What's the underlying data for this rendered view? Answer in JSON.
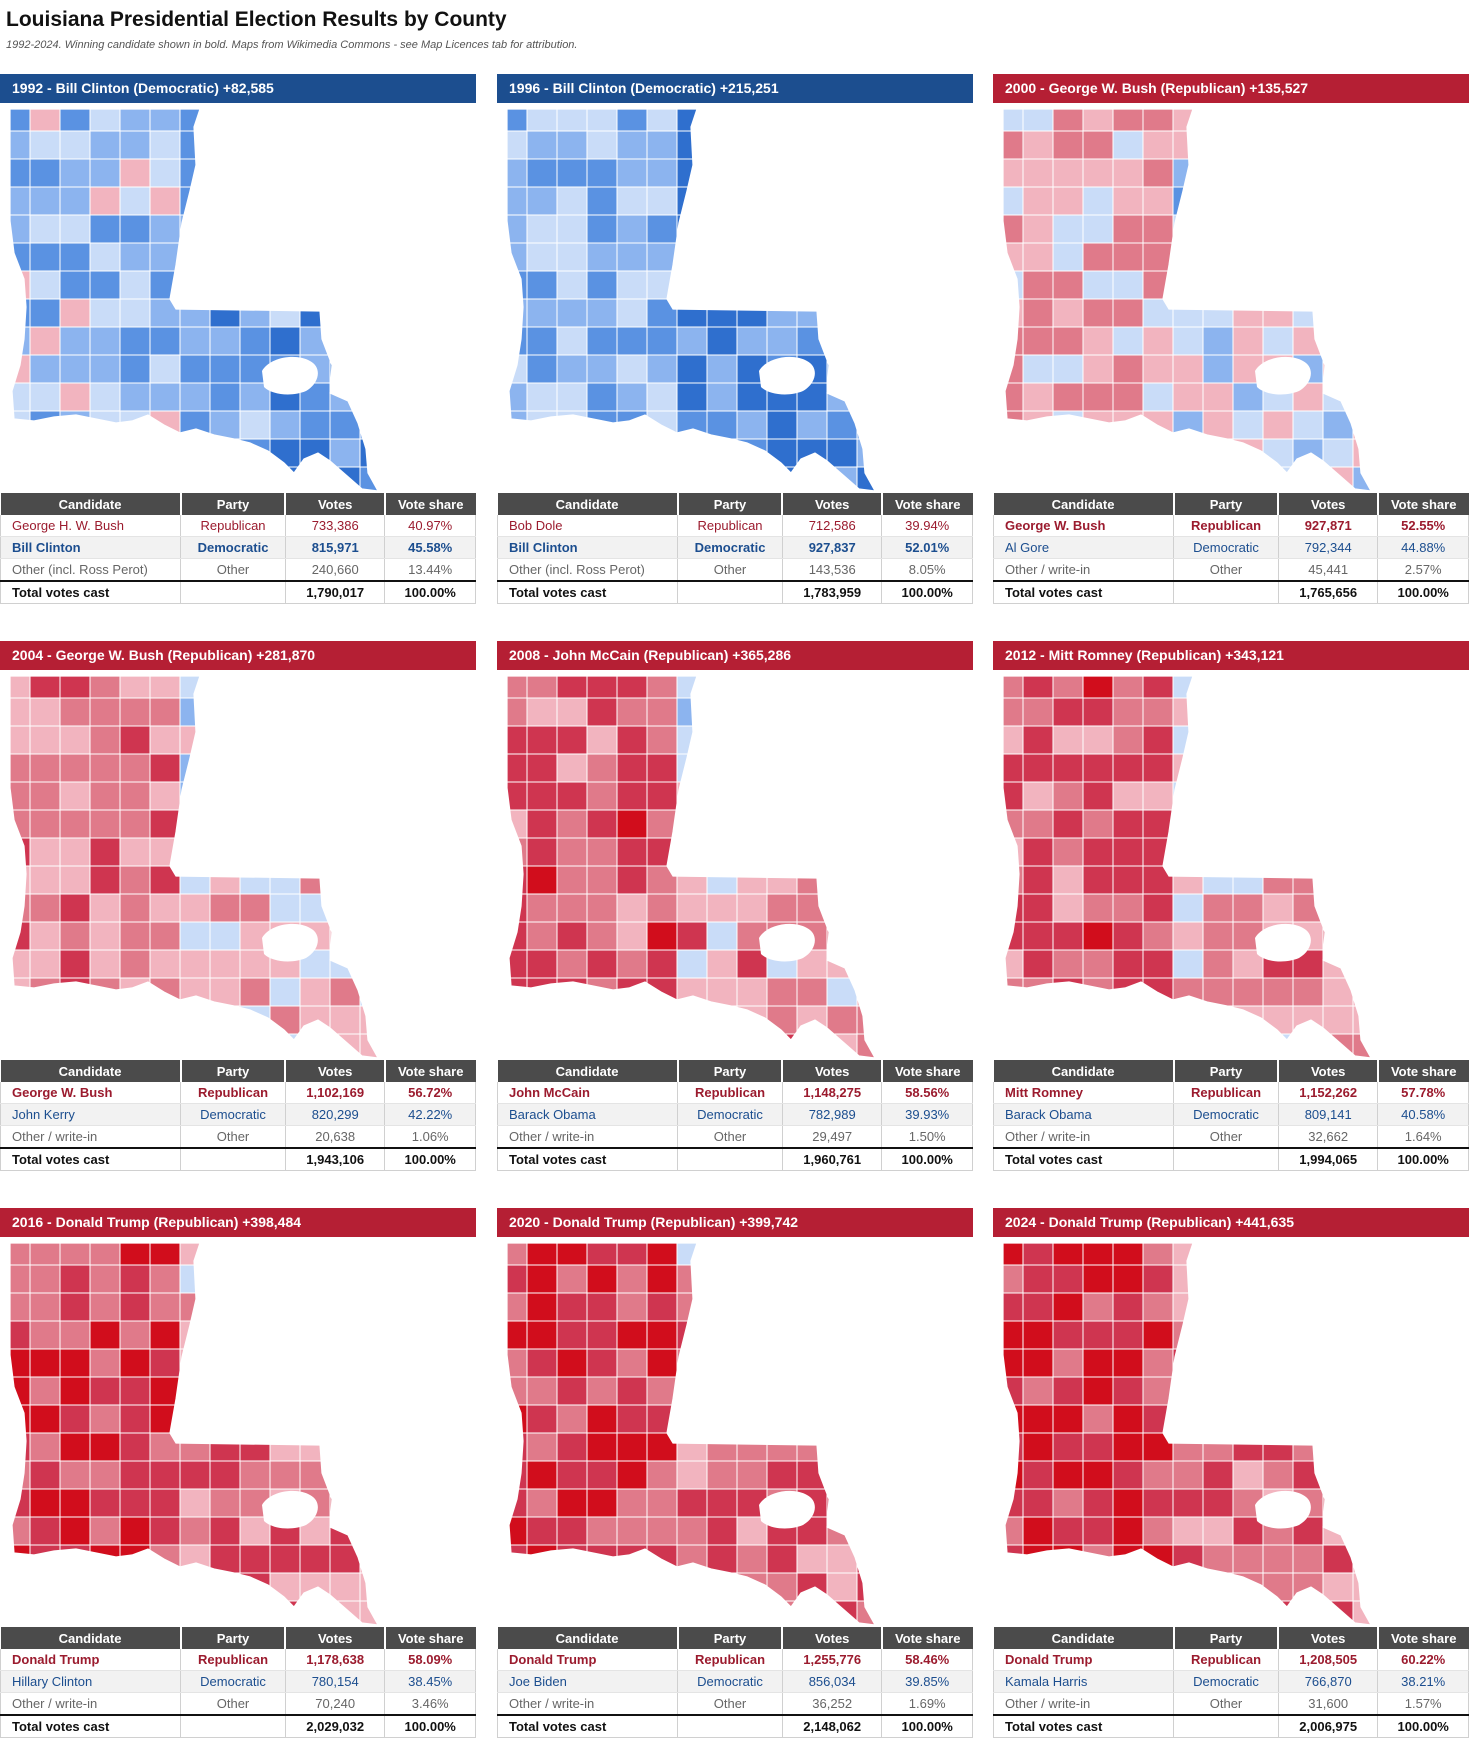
{
  "title": "Louisiana Presidential Election Results by County",
  "subtitle": "1992-2024. Winning candidate shown in bold. Maps from Wikimedia Commons - see Map Licences tab for attribution.",
  "table_headers": [
    "Candidate",
    "Party",
    "Votes",
    "Vote share"
  ],
  "colors": {
    "dem_header": "#1c4e8f",
    "rep_header": "#b51f34",
    "dem_shades": [
      "#c9dcf8",
      "#8cb4ef",
      "#5a92e2",
      "#2f6fce"
    ],
    "rep_shades": [
      "#f2b4bf",
      "#e07a8a",
      "#cf3550",
      "#d10d1c",
      "#8e0a14"
    ]
  },
  "elections": [
    {
      "year": "1992",
      "party": "dem",
      "header": "1992   -   Bill Clinton (Democratic) +82,585",
      "map_shade_bias": -0.65,
      "rows": [
        {
          "candidate": "George H. W. Bush",
          "party": "Republican",
          "votes": "733,386",
          "share": "40.97%",
          "type": "rep",
          "winner": false
        },
        {
          "candidate": "Bill Clinton",
          "party": "Democratic",
          "votes": "815,971",
          "share": "45.58%",
          "type": "dem",
          "winner": true
        },
        {
          "candidate": "Other (incl. Ross Perot)",
          "party": "Other",
          "votes": "240,660",
          "share": "13.44%",
          "type": "oth",
          "winner": false
        }
      ],
      "total": {
        "label": "Total votes cast",
        "votes": "1,790,017",
        "share": "100.00%"
      }
    },
    {
      "year": "1996",
      "party": "dem",
      "header": "1996   -   Bill Clinton (Democratic) +215,251",
      "map_shade_bias": -1.0,
      "rows": [
        {
          "candidate": "Bob Dole",
          "party": "Republican",
          "votes": "712,586",
          "share": "39.94%",
          "type": "rep",
          "winner": false
        },
        {
          "candidate": "Bill Clinton",
          "party": "Democratic",
          "votes": "927,837",
          "share": "52.01%",
          "type": "dem",
          "winner": true
        },
        {
          "candidate": "Other (incl. Ross Perot)",
          "party": "Other",
          "votes": "143,536",
          "share": "8.05%",
          "type": "oth",
          "winner": false
        }
      ],
      "total": {
        "label": "Total votes cast",
        "votes": "1,783,959",
        "share": "100.00%"
      }
    },
    {
      "year": "2000",
      "party": "rep",
      "header": "2000   -   George W. Bush (Republican) +135,527",
      "map_shade_bias": 0.5,
      "rows": [
        {
          "candidate": "George W. Bush",
          "party": "Republican",
          "votes": "927,871",
          "share": "52.55%",
          "type": "rep",
          "winner": true
        },
        {
          "candidate": "Al Gore",
          "party": "Democratic",
          "votes": "792,344",
          "share": "44.88%",
          "type": "dem",
          "winner": false
        },
        {
          "candidate": "Other / write-in",
          "party": "Other",
          "votes": "45,441",
          "share": "2.57%",
          "type": "oth",
          "winner": false
        }
      ],
      "total": {
        "label": "Total votes cast",
        "votes": "1,765,656",
        "share": "100.00%"
      }
    },
    {
      "year": "2004",
      "party": "rep",
      "header": "2004   -   George W. Bush (Republican) +281,870",
      "map_shade_bias": 1.0,
      "rows": [
        {
          "candidate": "George W. Bush",
          "party": "Republican",
          "votes": "1,102,169",
          "share": "56.72%",
          "type": "rep",
          "winner": true
        },
        {
          "candidate": "John Kerry",
          "party": "Democratic",
          "votes": "820,299",
          "share": "42.22%",
          "type": "dem",
          "winner": false
        },
        {
          "candidate": "Other / write-in",
          "party": "Other",
          "votes": "20,638",
          "share": "1.06%",
          "type": "oth",
          "winner": false
        }
      ],
      "total": {
        "label": "Total votes cast",
        "votes": "1,943,106",
        "share": "100.00%"
      }
    },
    {
      "year": "2008",
      "party": "rep",
      "header": "2008   -   John McCain (Republican) +365,286",
      "map_shade_bias": 1.3,
      "rows": [
        {
          "candidate": "John McCain",
          "party": "Republican",
          "votes": "1,148,275",
          "share": "58.56%",
          "type": "rep",
          "winner": true
        },
        {
          "candidate": "Barack Obama",
          "party": "Democratic",
          "votes": "782,989",
          "share": "39.93%",
          "type": "dem",
          "winner": false
        },
        {
          "candidate": "Other / write-in",
          "party": "Other",
          "votes": "29,497",
          "share": "1.50%",
          "type": "oth",
          "winner": false
        }
      ],
      "total": {
        "label": "Total votes cast",
        "votes": "1,960,761",
        "share": "100.00%"
      }
    },
    {
      "year": "2012",
      "party": "rep",
      "header": "2012   -   Mitt Romney (Republican) +343,121",
      "map_shade_bias": 1.3,
      "rows": [
        {
          "candidate": "Mitt Romney",
          "party": "Republican",
          "votes": "1,152,262",
          "share": "57.78%",
          "type": "rep",
          "winner": true
        },
        {
          "candidate": "Barack Obama",
          "party": "Democratic",
          "votes": "809,141",
          "share": "40.58%",
          "type": "dem",
          "winner": false
        },
        {
          "candidate": "Other / write-in",
          "party": "Other",
          "votes": "32,662",
          "share": "1.64%",
          "type": "oth",
          "winner": false
        }
      ],
      "total": {
        "label": "Total votes cast",
        "votes": "1,994,065",
        "share": "100.00%"
      }
    },
    {
      "year": "2016",
      "party": "rep",
      "header": "2016   -   Donald Trump (Republican) +398,484",
      "map_shade_bias": 1.7,
      "rows": [
        {
          "candidate": "Donald Trump",
          "party": "Republican",
          "votes": "1,178,638",
          "share": "58.09%",
          "type": "rep",
          "winner": true
        },
        {
          "candidate": "Hillary Clinton",
          "party": "Democratic",
          "votes": "780,154",
          "share": "38.45%",
          "type": "dem",
          "winner": false
        },
        {
          "candidate": "Other / write-in",
          "party": "Other",
          "votes": "70,240",
          "share": "3.46%",
          "type": "oth",
          "winner": false
        }
      ],
      "total": {
        "label": "Total votes cast",
        "votes": "2,029,032",
        "share": "100.00%"
      }
    },
    {
      "year": "2020",
      "party": "rep",
      "header": "2020   -   Donald Trump (Republican) +399,742",
      "map_shade_bias": 1.8,
      "rows": [
        {
          "candidate": "Donald Trump",
          "party": "Republican",
          "votes": "1,255,776",
          "share": "58.46%",
          "type": "rep",
          "winner": true
        },
        {
          "candidate": "Joe Biden",
          "party": "Democratic",
          "votes": "856,034",
          "share": "39.85%",
          "type": "dem",
          "winner": false
        },
        {
          "candidate": "Other / write-in",
          "party": "Other",
          "votes": "36,252",
          "share": "1.69%",
          "type": "oth",
          "winner": false
        }
      ],
      "total": {
        "label": "Total votes cast",
        "votes": "2,148,062",
        "share": "100.00%"
      }
    },
    {
      "year": "2024",
      "party": "rep",
      "header": "2024   -   Donald Trump (Republican) +441,635",
      "map_shade_bias": 1.9,
      "rows": [
        {
          "candidate": "Donald Trump",
          "party": "Republican",
          "votes": "1,208,505",
          "share": "60.22%",
          "type": "rep",
          "winner": true
        },
        {
          "candidate": "Kamala Harris",
          "party": "Democratic",
          "votes": "766,870",
          "share": "38.21%",
          "type": "dem",
          "winner": false
        },
        {
          "candidate": "Other / write-in",
          "party": "Other",
          "votes": "31,600",
          "share": "1.57%",
          "type": "oth",
          "winner": false
        }
      ],
      "total": {
        "label": "Total votes cast",
        "votes": "2,006,975",
        "share": "100.00%"
      }
    }
  ]
}
